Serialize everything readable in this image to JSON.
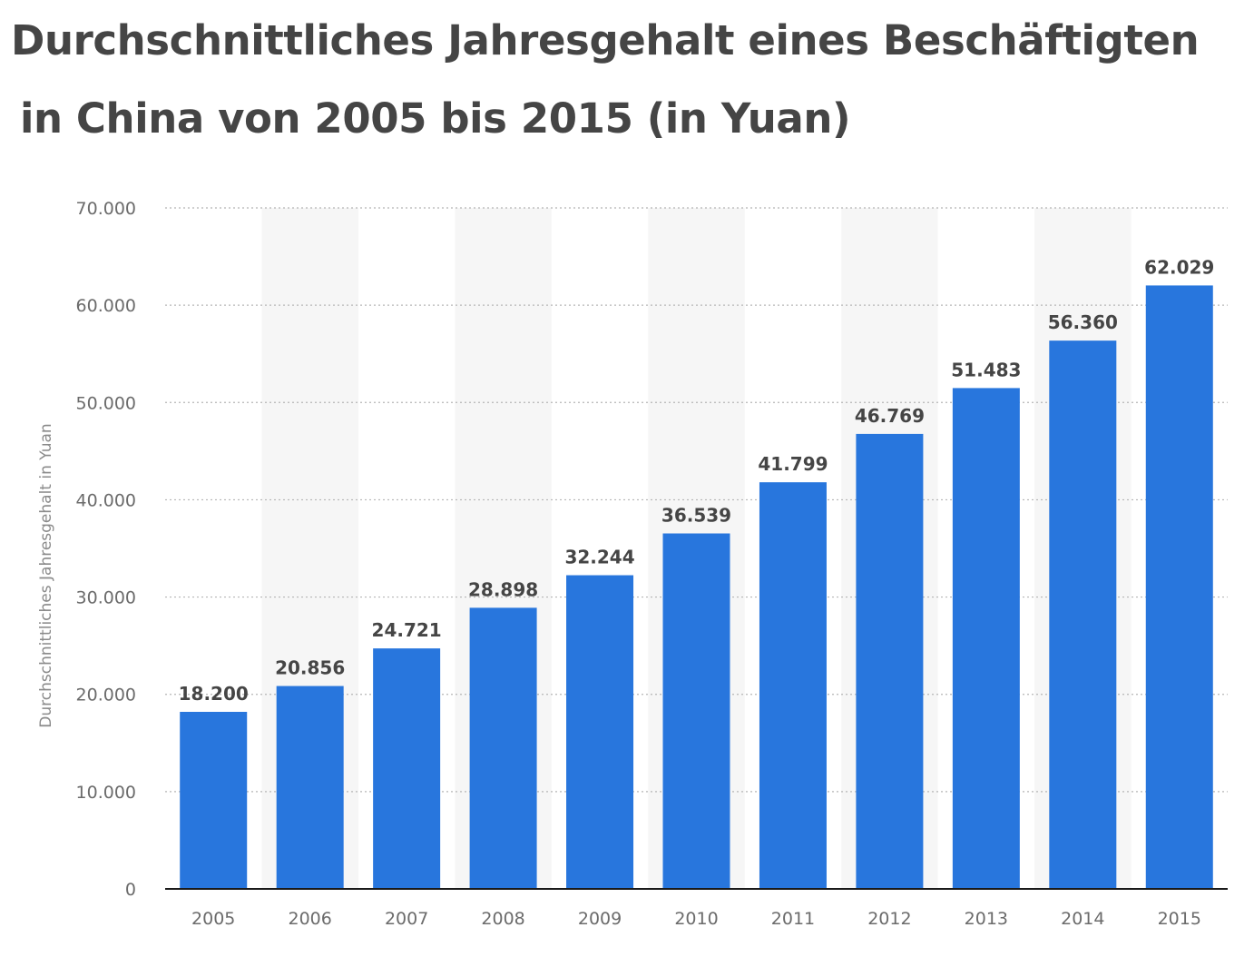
{
  "chart_data": {
    "type": "bar",
    "title_line1": "Durchschnittliches Jahresgehalt eines Beschäftigten",
    "title_line2": "in China von 2005 bis 2015 (in Yuan)",
    "xlabel": "",
    "ylabel": "Durchschnittliches Jahresgehalt in Yuan",
    "categories": [
      "2005",
      "2006",
      "2007",
      "2008",
      "2009",
      "2010",
      "2011",
      "2012",
      "2013",
      "2014",
      "2015"
    ],
    "values": [
      18200,
      20856,
      24721,
      28898,
      32244,
      36539,
      41799,
      46769,
      51483,
      56360,
      62029
    ],
    "value_labels": [
      "18.200",
      "20.856",
      "24.721",
      "28.898",
      "32.244",
      "36.539",
      "41.799",
      "46.769",
      "51.483",
      "56.360",
      "62.029"
    ],
    "ylim": [
      0,
      70000
    ],
    "y_ticks": [
      0,
      10000,
      20000,
      30000,
      40000,
      50000,
      60000,
      70000
    ],
    "y_tick_labels": [
      "0",
      "10.000",
      "20.000",
      "30.000",
      "40.000",
      "50.000",
      "60.000",
      "70.000"
    ],
    "grid": true,
    "legend": "none",
    "colors": {
      "bar": "#2876dd",
      "grid": "#b5b5b5",
      "band": "#f6f6f6",
      "axis": "#1a1a1a"
    }
  }
}
